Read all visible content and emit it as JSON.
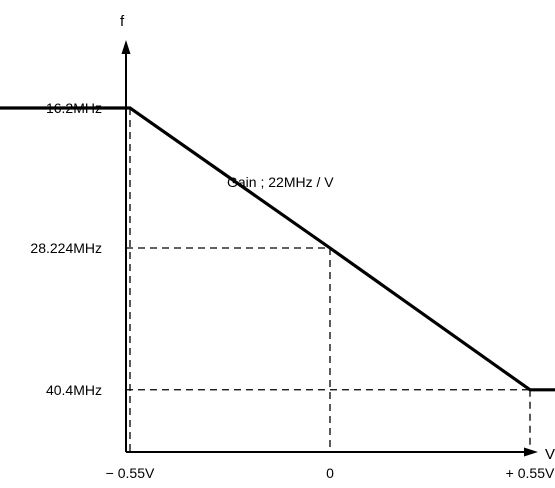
{
  "chart_data": {
    "type": "line",
    "series": [
      {
        "x": [
          -1.2,
          -0.55,
          0,
          0.55,
          1.2
        ],
        "y": [
          16.2,
          16.2,
          28.224,
          40.4,
          40.4
        ]
      }
    ],
    "ylabel": "f",
    "xlabel": "V",
    "xticks": [
      {
        "value": -0.55,
        "label": "− 0.55V"
      },
      {
        "value": 0,
        "label": "0"
      },
      {
        "value": 0.55,
        "label": "+ 0.55V"
      }
    ],
    "yticks": [
      {
        "value": 16.2,
        "label": "16.2MHz"
      },
      {
        "value": 28.224,
        "label": "28.224MHz"
      },
      {
        "value": 40.4,
        "label": "40.4MHz"
      }
    ],
    "annotation": "Gain ; 22MHz / V",
    "guides": "dashed lines from each breakpoint to both axes",
    "grid": false,
    "legend": "none",
    "colors": {
      "line": "#000000",
      "axes": "#000000"
    }
  }
}
